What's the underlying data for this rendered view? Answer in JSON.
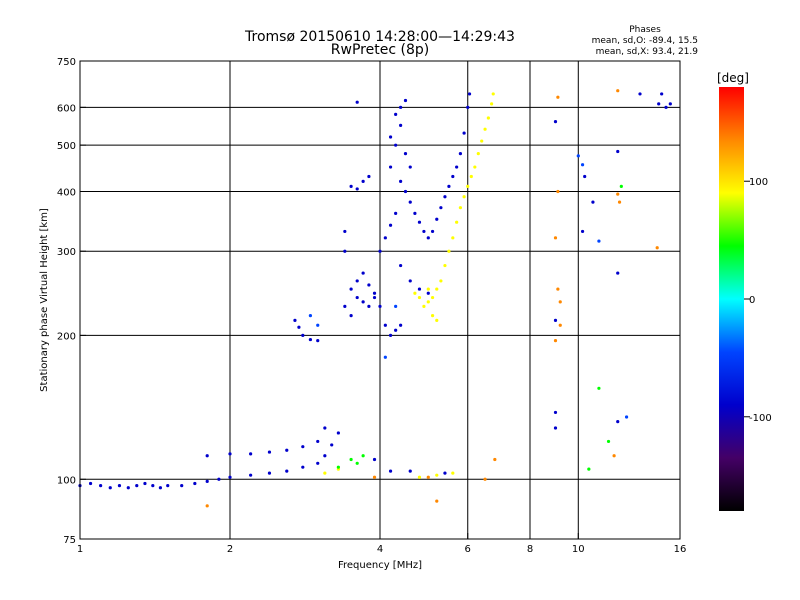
{
  "chart_data": {
    "type": "scatter",
    "title": "Tromsø 20150610 14:28:00—14:29:43",
    "subtitle": "RwPretec (8p)",
    "xlabel": "Frequency [MHz]",
    "ylabel": "Stationary phase Virtual Height [km]",
    "x_scale": "log",
    "y_scale": "log",
    "xlim": [
      1,
      16
    ],
    "ylim": [
      75,
      750
    ],
    "x_ticks": [
      1,
      2,
      4,
      6,
      8,
      10,
      16
    ],
    "x_tick_labels": [
      "1",
      "2",
      "4",
      "6",
      "8",
      "10",
      "16"
    ],
    "y_ticks": [
      75,
      100,
      200,
      300,
      400,
      500,
      600,
      750
    ],
    "y_tick_labels": [
      "75",
      "100",
      "200",
      "300",
      "400",
      "500",
      "600",
      "750"
    ],
    "x_gridlines": [
      2,
      4,
      6,
      8,
      10
    ],
    "y_gridlines": [
      100,
      200,
      300,
      400,
      500,
      600
    ],
    "grid": true,
    "phase_stats": {
      "header": "Phases",
      "line_o": "mean, sd,O: -89.4, 15.5",
      "line_x": "mean, sd,X:  93.4, 21.9"
    },
    "colorbar": {
      "label": "[deg]",
      "tick_values": [
        100,
        0,
        -100
      ],
      "tick_labels": [
        "100",
        "0",
        "-100"
      ],
      "range": [
        -180,
        180
      ],
      "colors_top_to_bottom": [
        "#ff0000",
        "#ff8800",
        "#ffff00",
        "#00ff00",
        "#00ffff",
        "#0044ff",
        "#0000cc",
        "#440066",
        "#000000"
      ]
    },
    "series": [
      {
        "phase_deg": -110,
        "points": [
          [
            1.0,
            97
          ],
          [
            1.05,
            98
          ],
          [
            1.1,
            97
          ],
          [
            1.15,
            96
          ],
          [
            1.2,
            97
          ],
          [
            1.25,
            96
          ],
          [
            1.3,
            97
          ],
          [
            1.35,
            98
          ],
          [
            1.4,
            97
          ],
          [
            1.45,
            96
          ],
          [
            1.5,
            97
          ],
          [
            1.6,
            97
          ],
          [
            1.7,
            98
          ],
          [
            1.8,
            99
          ],
          [
            1.9,
            100
          ],
          [
            2.0,
            101
          ],
          [
            2.2,
            102
          ],
          [
            2.4,
            103
          ],
          [
            2.6,
            104
          ],
          [
            2.8,
            106
          ],
          [
            3.0,
            108
          ],
          [
            3.1,
            112
          ],
          [
            3.2,
            118
          ],
          [
            3.3,
            125
          ],
          [
            1.8,
            112
          ],
          [
            2.0,
            113
          ],
          [
            2.2,
            113
          ],
          [
            2.4,
            114
          ],
          [
            2.6,
            115
          ],
          [
            2.8,
            117
          ],
          [
            3.0,
            120
          ],
          [
            3.1,
            128
          ],
          [
            2.7,
            215
          ],
          [
            2.75,
            208
          ],
          [
            2.8,
            200
          ],
          [
            2.9,
            196
          ],
          [
            3.0,
            195
          ],
          [
            3.4,
            330
          ],
          [
            3.4,
            300
          ],
          [
            3.5,
            410
          ],
          [
            3.6,
            405
          ],
          [
            3.7,
            420
          ],
          [
            3.8,
            430
          ],
          [
            3.5,
            250
          ],
          [
            3.6,
            240
          ],
          [
            3.7,
            235
          ],
          [
            3.8,
            230
          ],
          [
            3.9,
            240
          ],
          [
            3.4,
            230
          ],
          [
            3.5,
            220
          ],
          [
            3.6,
            260
          ],
          [
            3.7,
            270
          ],
          [
            3.8,
            255
          ],
          [
            3.9,
            245
          ],
          [
            4.0,
            230
          ],
          [
            4.0,
            300
          ],
          [
            4.1,
            320
          ],
          [
            4.2,
            340
          ],
          [
            4.3,
            360
          ],
          [
            4.1,
            210
          ],
          [
            4.2,
            200
          ],
          [
            4.3,
            205
          ],
          [
            4.4,
            210
          ],
          [
            4.2,
            450
          ],
          [
            4.3,
            500
          ],
          [
            4.4,
            550
          ],
          [
            4.5,
            620
          ],
          [
            4.4,
            600
          ],
          [
            4.3,
            580
          ],
          [
            4.2,
            520
          ],
          [
            4.5,
            480
          ],
          [
            4.6,
            450
          ],
          [
            4.4,
            420
          ],
          [
            4.5,
            400
          ],
          [
            4.6,
            380
          ],
          [
            4.7,
            360
          ],
          [
            4.8,
            345
          ],
          [
            4.9,
            330
          ],
          [
            5.0,
            320
          ],
          [
            5.1,
            330
          ],
          [
            5.2,
            350
          ],
          [
            5.3,
            370
          ],
          [
            5.4,
            390
          ],
          [
            5.5,
            410
          ],
          [
            5.6,
            430
          ],
          [
            5.7,
            450
          ],
          [
            5.8,
            480
          ],
          [
            5.9,
            530
          ],
          [
            6.0,
            600
          ],
          [
            6.05,
            640
          ],
          [
            4.4,
            280
          ],
          [
            4.6,
            260
          ],
          [
            4.8,
            250
          ],
          [
            5.0,
            245
          ],
          [
            3.9,
            110
          ],
          [
            4.2,
            104
          ],
          [
            4.6,
            104
          ],
          [
            5.4,
            103
          ],
          [
            3.6,
            615
          ],
          [
            9.0,
            560
          ],
          [
            10.3,
            430
          ],
          [
            10.2,
            330
          ],
          [
            9.0,
            215
          ],
          [
            9.0,
            138
          ],
          [
            9.0,
            128
          ],
          [
            12.0,
            485
          ],
          [
            12.0,
            270
          ],
          [
            12.0,
            132
          ],
          [
            14.5,
            610
          ],
          [
            15.0,
            600
          ],
          [
            15.3,
            610
          ],
          [
            13.3,
            640
          ],
          [
            10.7,
            380
          ],
          [
            14.7,
            640
          ]
        ]
      },
      {
        "phase_deg": -60,
        "points": [
          [
            2.9,
            220
          ],
          [
            3.0,
            210
          ],
          [
            4.1,
            180
          ],
          [
            4.3,
            230
          ],
          [
            11.0,
            315
          ],
          [
            10.0,
            475
          ],
          [
            10.2,
            455
          ],
          [
            12.5,
            135
          ]
        ]
      },
      {
        "phase_deg": 110,
        "points": [
          [
            5.0,
            235
          ],
          [
            5.1,
            240
          ],
          [
            5.2,
            250
          ],
          [
            5.3,
            260
          ],
          [
            5.4,
            280
          ],
          [
            5.5,
            300
          ],
          [
            5.6,
            320
          ],
          [
            5.7,
            345
          ],
          [
            5.8,
            370
          ],
          [
            5.9,
            390
          ],
          [
            6.0,
            410
          ],
          [
            6.1,
            430
          ],
          [
            6.2,
            450
          ],
          [
            6.3,
            480
          ],
          [
            6.4,
            510
          ],
          [
            6.5,
            540
          ],
          [
            6.6,
            570
          ],
          [
            6.7,
            610
          ],
          [
            6.75,
            640
          ],
          [
            4.9,
            230
          ],
          [
            5.0,
            250
          ],
          [
            5.1,
            220
          ],
          [
            5.2,
            215
          ],
          [
            4.7,
            245
          ],
          [
            4.8,
            240
          ],
          [
            3.1,
            103
          ],
          [
            3.3,
            105
          ],
          [
            4.8,
            101
          ],
          [
            5.2,
            102
          ],
          [
            5.6,
            103
          ]
        ]
      },
      {
        "phase_deg": 60,
        "points": [
          [
            3.5,
            110
          ],
          [
            3.6,
            108
          ],
          [
            3.3,
            106
          ],
          [
            3.7,
            112
          ],
          [
            11.0,
            155
          ],
          [
            10.5,
            105
          ],
          [
            11.5,
            120
          ],
          [
            12.2,
            410
          ]
        ]
      },
      {
        "phase_deg": 150,
        "points": [
          [
            1.8,
            88
          ],
          [
            5.2,
            90
          ],
          [
            5.0,
            101
          ],
          [
            6.8,
            110
          ],
          [
            6.5,
            100
          ],
          [
            9.1,
            630
          ],
          [
            9.1,
            400
          ],
          [
            9.0,
            320
          ],
          [
            9.1,
            250
          ],
          [
            9.2,
            235
          ],
          [
            9.2,
            210
          ],
          [
            9.0,
            195
          ],
          [
            12.0,
            650
          ],
          [
            12.0,
            395
          ],
          [
            12.1,
            380
          ],
          [
            14.4,
            305
          ],
          [
            11.8,
            112
          ],
          [
            3.9,
            101
          ]
        ]
      }
    ]
  }
}
